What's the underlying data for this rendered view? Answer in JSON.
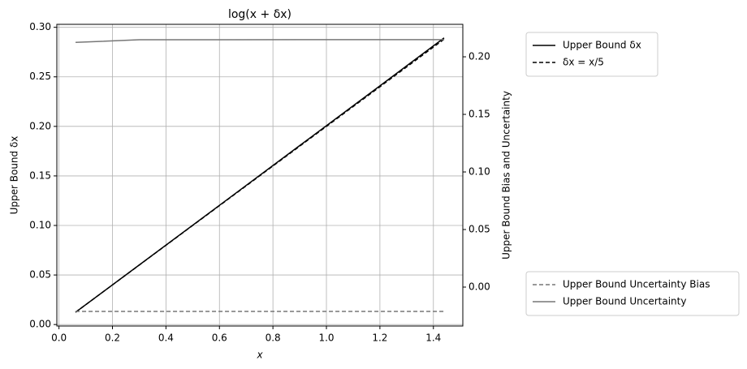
{
  "chart_data": {
    "type": "line",
    "title": "log(x + δx)",
    "xlabel": "x",
    "ylabel": "Upper Bound δx",
    "y2label": "Upper Bound Bias and Uncertainty",
    "x": [
      0.062,
      0.3,
      0.6,
      0.9,
      1.2,
      1.44
    ],
    "series": [
      {
        "name": "Upper Bound δx",
        "color": "#000000",
        "dash": false,
        "values": [
          0.0124,
          0.0601,
          0.1203,
          0.1806,
          0.2409,
          0.2893
        ]
      },
      {
        "name": "δx = x/5",
        "color": "#000000",
        "dash": true,
        "values": [
          0.0124,
          0.06,
          0.12,
          0.18,
          0.24,
          0.288
        ]
      },
      {
        "name": "Upper Bound Uncertainty Bias",
        "color": "#777777",
        "dash": true,
        "axis": "y2",
        "values": [
          -0.0211,
          -0.0211,
          -0.0211,
          -0.0211,
          -0.0211,
          -0.0211
        ]
      },
      {
        "name": "Upper Bound Uncertainty",
        "color": "#777777",
        "dash": false,
        "axis": "y2",
        "values": [
          0.2125,
          0.2148,
          0.2148,
          0.2149,
          0.2149,
          0.2149
        ]
      }
    ],
    "xlim": [
      -0.008,
      1.51
    ],
    "xticks": [
      {
        "value": 0,
        "label": "0.0"
      },
      0.2,
      0.4,
      0.6,
      0.8,
      {
        "value": 1,
        "label": "1.0"
      },
      1.2,
      1.4
    ],
    "ylim": [
      -0.0015,
      0.303
    ],
    "yticks": [
      {
        "value": 0,
        "label": "0.00"
      },
      0.05,
      {
        "value": 0.1,
        "label": "0.10"
      },
      0.15,
      {
        "value": 0.2,
        "label": "0.20"
      },
      0.25,
      {
        "value": 0.3,
        "label": "0.30"
      }
    ],
    "y2lim": [
      -0.0338,
      0.2282
    ],
    "y2ticks": [
      {
        "value": 0,
        "label": "0.00"
      },
      0.05,
      {
        "value": 0.1,
        "label": "0.10"
      },
      0.15,
      {
        "value": 0.2,
        "label": "0.20"
      }
    ],
    "grid": true
  }
}
